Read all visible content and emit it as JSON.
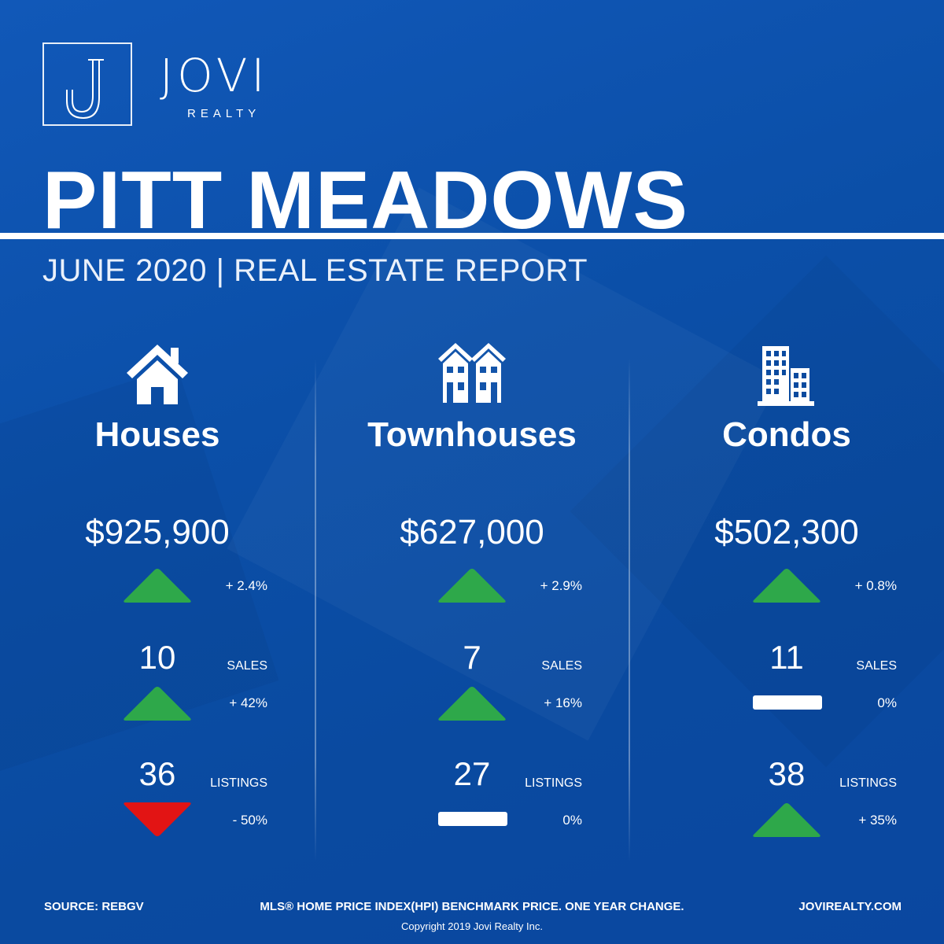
{
  "brand": {
    "name": "JOVI",
    "sub": "REALTY",
    "logo_letter": "J"
  },
  "title": "PITT MEADOWS",
  "subtitle": "JUNE 2020 | REAL ESTATE REPORT",
  "colors": {
    "background": "#0b4fa8",
    "up": "#2ea84a",
    "down": "#e21414",
    "flat": "#ffffff"
  },
  "columns": [
    {
      "icon": "house-icon",
      "title": "Houses",
      "price": "$925,900",
      "price_change": "+ 2.4%",
      "price_trend": "up",
      "sales": "10",
      "sales_label": "SALES",
      "sales_change": "+ 42%",
      "sales_trend": "up",
      "listings": "36",
      "listings_label": "LISTINGS",
      "listings_change": "- 50%",
      "listings_trend": "down"
    },
    {
      "icon": "townhouse-icon",
      "title": "Townhouses",
      "price": "$627,000",
      "price_change": "+ 2.9%",
      "price_trend": "up",
      "sales": "7",
      "sales_label": "SALES",
      "sales_change": "+ 16%",
      "sales_trend": "up",
      "listings": "27",
      "listings_label": "LISTINGS",
      "listings_change": "0%",
      "listings_trend": "flat"
    },
    {
      "icon": "condo-building-icon",
      "title": "Condos",
      "price": "$502,300",
      "price_change": "+ 0.8%",
      "price_trend": "up",
      "sales": "11",
      "sales_label": "SALES",
      "sales_change": "0%",
      "sales_trend": "flat",
      "listings": "38",
      "listings_label": "LISTINGS",
      "listings_change": "+ 35%",
      "listings_trend": "up"
    }
  ],
  "footer": {
    "source": "SOURCE:  REBGV",
    "note": "MLS® HOME PRICE INDEX(HPI) BENCHMARK PRICE. ONE YEAR CHANGE.",
    "copyright": "Copyright 2019 Jovi Realty Inc.",
    "website": "JOVIREALTY.COM"
  }
}
